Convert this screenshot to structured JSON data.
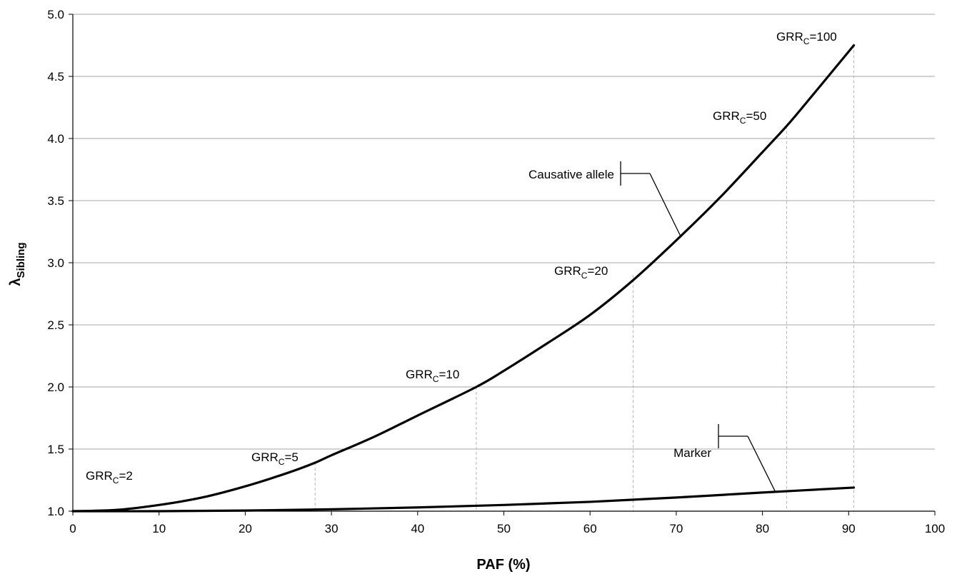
{
  "chart_data": {
    "type": "line",
    "xlabel": "PAF (%)",
    "ylabel_main": "λ",
    "ylabel_sub": "Sibling",
    "xlim": [
      0,
      100
    ],
    "ylim": [
      1.0,
      5.0
    ],
    "xticks": [
      0,
      10,
      20,
      30,
      40,
      50,
      60,
      70,
      80,
      90,
      100
    ],
    "xtick_labels": [
      "0",
      "10",
      "20",
      "30",
      "40",
      "50",
      "60",
      "70",
      "80",
      "90",
      "100"
    ],
    "yticks": [
      1.0,
      1.5,
      2.0,
      2.5,
      3.0,
      3.5,
      4.0,
      4.5,
      5.0
    ],
    "ytick_labels": [
      "1.0",
      "1.5",
      "2.0",
      "2.5",
      "3.0",
      "3.5",
      "4.0",
      "4.5",
      "5.0"
    ],
    "grid": "horizontal",
    "colors": {
      "line": "#000000",
      "grid": "#a6a6a6",
      "dropline": "#b3b3b3"
    },
    "series": [
      {
        "name": "Causative allele",
        "x": [
          0,
          5,
          10,
          15,
          20,
          25,
          28.1,
          30,
          35,
          40,
          46.8,
          50,
          55,
          60,
          65,
          70,
          75,
          80,
          82.8,
          85,
          90.6
        ],
        "y": [
          1.0,
          1.01,
          1.05,
          1.11,
          1.2,
          1.31,
          1.39,
          1.45,
          1.6,
          1.77,
          2.0,
          2.13,
          2.35,
          2.58,
          2.86,
          3.18,
          3.52,
          3.89,
          4.1,
          4.28,
          4.75
        ]
      },
      {
        "name": "Marker",
        "x": [
          0,
          10,
          20,
          30,
          40,
          50,
          60,
          70,
          80,
          90.6
        ],
        "y": [
          1.0,
          1.0,
          1.005,
          1.015,
          1.03,
          1.05,
          1.075,
          1.11,
          1.15,
          1.19
        ]
      }
    ],
    "markers": [
      {
        "label_main": "GRR",
        "label_sub": "C",
        "label_rest": "=2",
        "x": 6.5,
        "y": 1.0
      },
      {
        "label_main": "GRR",
        "label_sub": "C",
        "label_rest": "=5",
        "x": 28.1,
        "y": 1.39
      },
      {
        "label_main": "GRR",
        "label_sub": "C",
        "label_rest": "=10",
        "x": 46.8,
        "y": 2.0
      },
      {
        "label_main": "GRR",
        "label_sub": "C",
        "label_rest": "=20",
        "x": 65.0,
        "y": 2.9
      },
      {
        "label_main": "GRR",
        "label_sub": "C",
        "label_rest": "=50",
        "x": 82.8,
        "y": 4.1
      },
      {
        "label_main": "GRR",
        "label_sub": "C",
        "label_rest": "=100",
        "x": 90.6,
        "y": 4.75
      }
    ],
    "annotations": [
      {
        "text": "Causative allele",
        "series": "Causative allele"
      },
      {
        "text": "Marker",
        "series": "Marker"
      }
    ]
  }
}
